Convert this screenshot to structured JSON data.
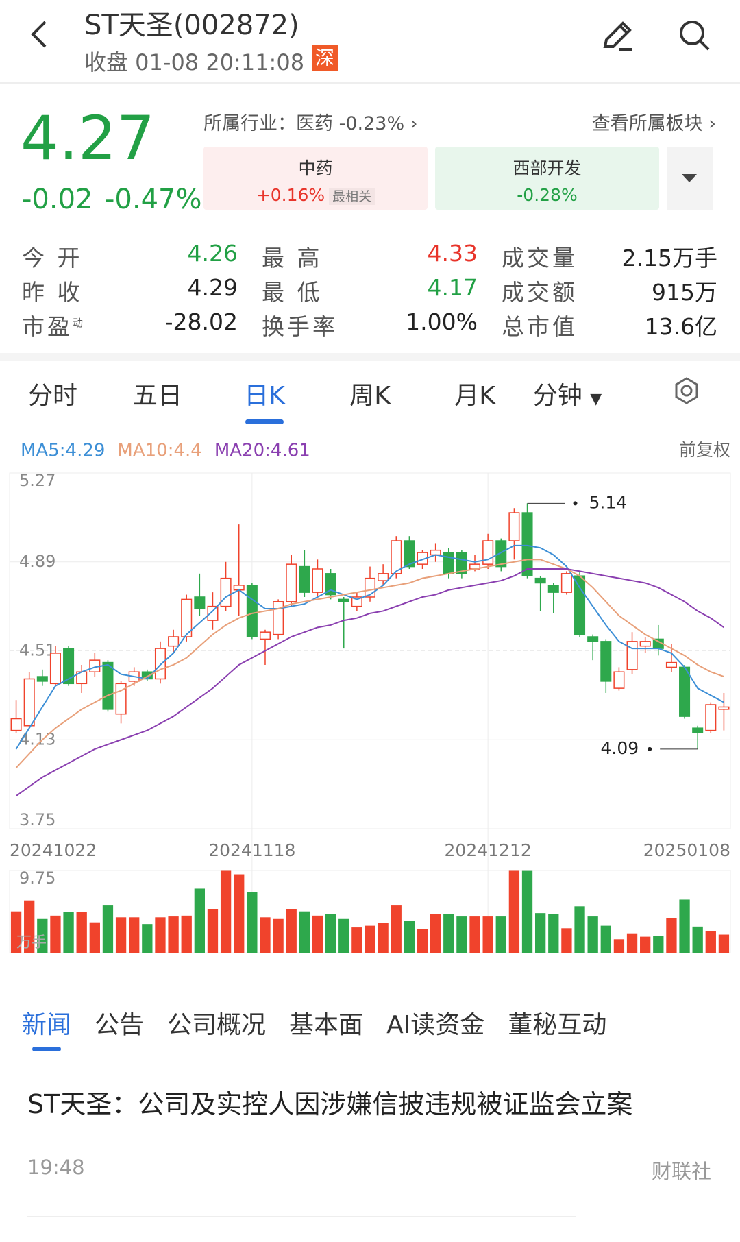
{
  "header": {
    "title": "ST天圣(002872)",
    "status": "收盘 01-08 20:11:08",
    "exchange": "深"
  },
  "quote": {
    "price": "4.27",
    "change": "-0.02",
    "change_pct": "-0.47%",
    "industry": "所属行业：医药 -0.23%",
    "board_link": "查看所属板块"
  },
  "sectors": [
    {
      "name": "中药",
      "change": "+0.16%",
      "tag": "最相关",
      "tone": "up"
    },
    {
      "name": "西部开发",
      "change": "-0.28%",
      "tone": "down"
    }
  ],
  "stats": [
    [
      {
        "label": "今 开",
        "value": "4.26",
        "tone": "down"
      },
      {
        "label": "最 高",
        "value": "4.33",
        "tone": "up"
      },
      {
        "label": "成交量",
        "value": "2.15万手"
      }
    ],
    [
      {
        "label": "昨 收",
        "value": "4.29"
      },
      {
        "label": "最 低",
        "value": "4.17",
        "tone": "down"
      },
      {
        "label": "成交额",
        "value": "915万"
      }
    ],
    [
      {
        "label": "市盈",
        "sup": "动",
        "value": "-28.02"
      },
      {
        "label": "换手率",
        "value": "1.00%"
      },
      {
        "label": "总市值",
        "value": "13.6亿"
      }
    ]
  ],
  "chart_tabs": {
    "items": [
      "分时",
      "五日",
      "日K",
      "周K",
      "月K",
      "分钟"
    ],
    "active": 2
  },
  "chart_data": {
    "type": "candlestick",
    "adjust_label": "前复权",
    "up_color": "#f0432c",
    "down_color": "#2ea84c",
    "categories": [
      "20241022",
      null,
      null,
      null,
      null,
      null,
      null,
      null,
      null,
      null,
      null,
      null,
      null,
      null,
      null,
      null,
      null,
      null,
      "20241118",
      null,
      null,
      null,
      null,
      null,
      null,
      null,
      null,
      null,
      null,
      null,
      null,
      null,
      null,
      null,
      null,
      null,
      "20241212",
      null,
      null,
      null,
      null,
      null,
      null,
      null,
      null,
      null,
      null,
      null,
      null,
      null,
      null,
      null,
      null,
      null,
      "20250108"
    ],
    "open": [
      4.17,
      4.19,
      4.4,
      4.37,
      4.52,
      4.37,
      4.42,
      4.46,
      4.24,
      4.38,
      4.42,
      4.39,
      4.53,
      4.57,
      4.74,
      4.64,
      4.7,
      4.77,
      4.79,
      4.56,
      4.58,
      4.72,
      4.87,
      4.76,
      4.84,
      4.73,
      4.7,
      4.74,
      4.81,
      4.84,
      4.98,
      4.88,
      4.92,
      4.93,
      4.93,
      4.86,
      4.88,
      4.98,
      4.98,
      5.1,
      4.82,
      4.79,
      4.76,
      4.83,
      4.57,
      4.55,
      4.35,
      4.43,
      4.53,
      4.56,
      4.44,
      4.44,
      4.18,
      4.17,
      4.26
    ],
    "close": [
      4.22,
      4.39,
      4.38,
      4.5,
      4.37,
      4.42,
      4.47,
      4.26,
      4.37,
      4.42,
      4.39,
      4.52,
      4.57,
      4.73,
      4.69,
      4.7,
      4.82,
      4.79,
      4.57,
      4.59,
      4.72,
      4.88,
      4.76,
      4.86,
      4.75,
      4.72,
      4.74,
      4.82,
      4.84,
      4.98,
      4.87,
      4.93,
      4.94,
      4.84,
      4.84,
      4.88,
      4.98,
      4.87,
      5.1,
      4.83,
      4.8,
      4.76,
      4.84,
      4.58,
      4.55,
      4.38,
      4.42,
      4.55,
      4.55,
      4.52,
      4.46,
      4.23,
      4.16,
      4.28,
      4.27
    ],
    "high": [
      4.3,
      4.42,
      4.43,
      4.53,
      4.53,
      4.45,
      4.5,
      4.47,
      4.38,
      4.44,
      4.43,
      4.55,
      4.6,
      4.75,
      4.84,
      4.76,
      4.89,
      5.05,
      4.8,
      4.6,
      4.73,
      4.92,
      4.94,
      4.9,
      4.86,
      4.74,
      4.76,
      4.87,
      4.88,
      5.0,
      5.0,
      4.94,
      4.97,
      4.95,
      4.94,
      4.92,
      5.01,
      4.99,
      5.12,
      5.14,
      4.83,
      4.8,
      4.85,
      4.85,
      4.58,
      4.56,
      4.44,
      4.59,
      4.57,
      4.62,
      4.54,
      4.45,
      4.19,
      4.29,
      4.33
    ],
    "low": [
      4.16,
      4.18,
      4.36,
      4.36,
      4.36,
      4.33,
      4.4,
      4.25,
      4.2,
      4.36,
      4.38,
      4.37,
      4.5,
      4.55,
      4.66,
      4.6,
      4.68,
      4.66,
      4.56,
      4.45,
      4.56,
      4.7,
      4.74,
      4.74,
      4.73,
      4.52,
      4.68,
      4.72,
      4.79,
      4.82,
      4.86,
      4.86,
      4.89,
      4.82,
      4.82,
      4.85,
      4.86,
      4.85,
      4.9,
      4.82,
      4.68,
      4.67,
      4.75,
      4.57,
      4.47,
      4.33,
      4.34,
      4.41,
      4.5,
      4.49,
      4.42,
      4.22,
      4.09,
      4.16,
      4.17
    ],
    "series": [
      {
        "name": "MA5:4.29",
        "color": "#3d8fd6",
        "values": [
          4.09,
          4.18,
          4.27,
          4.36,
          4.39,
          4.42,
          4.44,
          4.45,
          4.41,
          4.4,
          4.39,
          4.45,
          4.5,
          4.58,
          4.63,
          4.68,
          4.74,
          4.77,
          4.73,
          4.69,
          4.69,
          4.7,
          4.71,
          4.74,
          4.77,
          4.75,
          4.73,
          4.75,
          4.79,
          4.85,
          4.88,
          4.9,
          4.92,
          4.91,
          4.9,
          4.89,
          4.9,
          4.93,
          4.96,
          4.96,
          4.95,
          4.92,
          4.87,
          4.78,
          4.7,
          4.62,
          4.55,
          4.52,
          4.52,
          4.52,
          4.5,
          4.44,
          4.35,
          4.32,
          4.29
        ]
      },
      {
        "name": "MA10:4.4",
        "color": "#e8a07a",
        "values": [
          4.01,
          4.07,
          4.13,
          4.18,
          4.22,
          4.26,
          4.29,
          4.32,
          4.34,
          4.37,
          4.4,
          4.43,
          4.45,
          4.48,
          4.53,
          4.58,
          4.62,
          4.65,
          4.67,
          4.68,
          4.69,
          4.71,
          4.72,
          4.73,
          4.74,
          4.75,
          4.76,
          4.77,
          4.78,
          4.79,
          4.8,
          4.82,
          4.83,
          4.84,
          4.85,
          4.86,
          4.87,
          4.88,
          4.89,
          4.9,
          4.9,
          4.88,
          4.86,
          4.83,
          4.78,
          4.72,
          4.66,
          4.62,
          4.58,
          4.55,
          4.52,
          4.49,
          4.45,
          4.42,
          4.4
        ]
      },
      {
        "name": "MA20:4.61",
        "color": "#8a3fb0",
        "values": [
          3.89,
          3.93,
          3.97,
          4.0,
          4.03,
          4.06,
          4.09,
          4.11,
          4.13,
          4.15,
          4.17,
          4.2,
          4.23,
          4.27,
          4.31,
          4.35,
          4.4,
          4.45,
          4.48,
          4.51,
          4.54,
          4.57,
          4.59,
          4.61,
          4.62,
          4.64,
          4.65,
          4.67,
          4.68,
          4.7,
          4.72,
          4.74,
          4.75,
          4.77,
          4.78,
          4.79,
          4.8,
          4.81,
          4.83,
          4.86,
          4.86,
          4.86,
          4.86,
          4.85,
          4.84,
          4.83,
          4.82,
          4.81,
          4.8,
          4.78,
          4.75,
          4.72,
          4.68,
          4.65,
          4.61
        ]
      }
    ],
    "ylim": [
      3.75,
      5.27
    ],
    "yticks": [
      5.27,
      4.89,
      4.51,
      4.13,
      3.75
    ],
    "grid": true,
    "volume": {
      "values": [
        4.9,
        6.2,
        4.0,
        4.4,
        4.8,
        4.8,
        3.6,
        5.6,
        4.2,
        4.2,
        3.4,
        4.2,
        4.3,
        4.4,
        7.6,
        5.2,
        9.75,
        9.3,
        7.2,
        4.2,
        4.0,
        5.2,
        4.9,
        4.4,
        4.6,
        4.0,
        3.0,
        3.2,
        3.5,
        5.6,
        3.8,
        2.8,
        4.6,
        4.6,
        4.3,
        4.3,
        4.3,
        4.3,
        9.75,
        9.7,
        4.7,
        4.6,
        2.9,
        5.5,
        4.3,
        3.2,
        1.6,
        2.3,
        1.9,
        2.0,
        4.1,
        6.3,
        3.1,
        2.6,
        2.15
      ],
      "ylim": [
        0,
        9.75
      ],
      "yticks": [
        9.75
      ],
      "unit": "万手"
    }
  },
  "news_tabs": {
    "items": [
      "新闻",
      "公告",
      "公司概况",
      "基本面",
      "AI读资金",
      "董秘互动"
    ],
    "active": 0
  },
  "news": [
    {
      "title": "ST天圣：公司及实控人因涉嫌信披违规被证监会立案",
      "time": "19:48",
      "source": "财联社"
    }
  ]
}
